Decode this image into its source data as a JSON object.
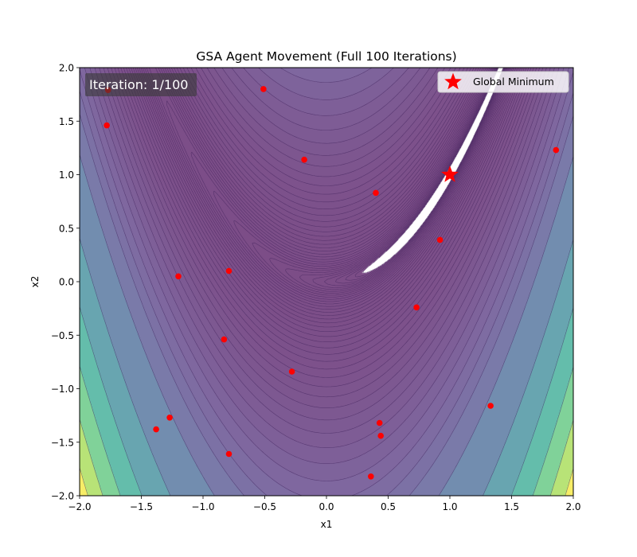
{
  "chart_data": {
    "type": "scatter",
    "title": "GSA Agent Movement (Full 100 Iterations)",
    "xlabel": "x1",
    "ylabel": "x2",
    "xlim": [
      -2.0,
      2.0
    ],
    "ylim": [
      -2.0,
      2.0
    ],
    "x_ticks": [
      -2.0,
      -1.5,
      -1.0,
      -0.5,
      0.0,
      0.5,
      1.0,
      1.5,
      2.0
    ],
    "y_ticks": [
      -2.0,
      -1.5,
      -1.0,
      -0.5,
      0.0,
      0.5,
      1.0,
      1.5,
      2.0
    ],
    "x_tick_labels": [
      "−2.0",
      "−1.5",
      "−1.0",
      "−0.5",
      "0.0",
      "0.5",
      "1.0",
      "1.5",
      "2.0"
    ],
    "y_tick_labels": [
      "−2.0",
      "−1.5",
      "−1.0",
      "−0.5",
      "0.0",
      "0.5",
      "1.0",
      "1.5",
      "2.0"
    ],
    "background": {
      "kind": "filled-contour",
      "function": "Rosenbrock f(x1,x2) = (1 - x1)^2 + 100 (x2 - x1^2)^2",
      "colormap": "viridis",
      "alpha": 0.7
    },
    "iteration_text": "Iteration: 1/100",
    "agents": {
      "color": "#ff0000",
      "points": [
        {
          "x": -1.77,
          "y": 1.79
        },
        {
          "x": -1.78,
          "y": 1.46
        },
        {
          "x": -0.51,
          "y": 1.8
        },
        {
          "x": -0.18,
          "y": 1.14
        },
        {
          "x": 0.4,
          "y": 0.83
        },
        {
          "x": 1.86,
          "y": 1.23
        },
        {
          "x": 0.92,
          "y": 0.39
        },
        {
          "x": -1.2,
          "y": 0.05
        },
        {
          "x": -0.79,
          "y": 0.1
        },
        {
          "x": 0.73,
          "y": -0.24
        },
        {
          "x": -0.83,
          "y": -0.54
        },
        {
          "x": -0.28,
          "y": -0.84
        },
        {
          "x": 1.33,
          "y": -1.16
        },
        {
          "x": -1.27,
          "y": -1.27
        },
        {
          "x": -1.38,
          "y": -1.38
        },
        {
          "x": 0.43,
          "y": -1.32
        },
        {
          "x": 0.44,
          "y": -1.44
        },
        {
          "x": -0.79,
          "y": -1.61
        },
        {
          "x": 0.36,
          "y": -1.82
        }
      ]
    },
    "global_minimum": {
      "x": 1.0,
      "y": 1.0,
      "color": "#ff0000",
      "marker": "star"
    },
    "legend": {
      "position": "top-right",
      "entries": [
        "Global Minimum"
      ]
    }
  }
}
